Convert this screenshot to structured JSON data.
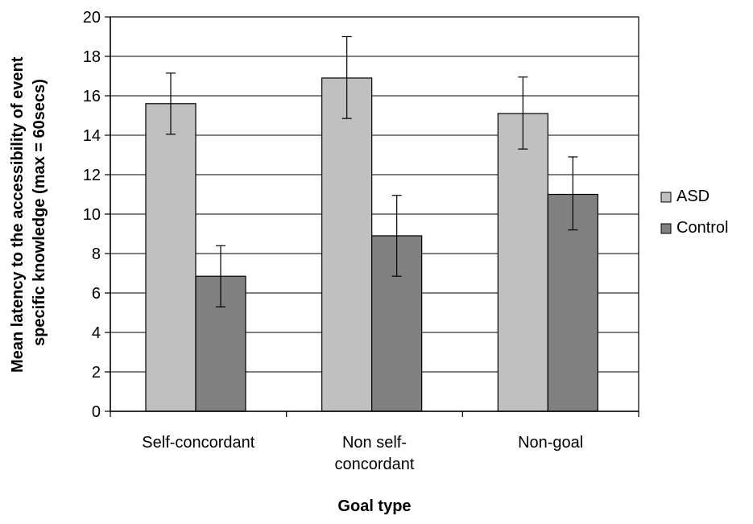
{
  "chart_data": {
    "type": "bar",
    "xlabel": "Goal type",
    "ylabel_lines": [
      "Mean latency to the accessibility of event",
      "specific knowledge (max = 60secs)"
    ],
    "categories": [
      [
        "Self-concordant"
      ],
      [
        "Non self-",
        "concordant"
      ],
      [
        "Non-goal"
      ]
    ],
    "series": [
      {
        "name": "ASD",
        "color": "#c0c0c0",
        "values": [
          15.6,
          16.9,
          15.1
        ],
        "error_low": [
          14.05,
          14.85,
          13.3
        ],
        "error_high": [
          17.15,
          19.0,
          16.95
        ]
      },
      {
        "name": "Control",
        "color": "#808080",
        "values": [
          6.85,
          8.9,
          11.0
        ],
        "error_low": [
          5.3,
          6.85,
          9.2
        ],
        "error_high": [
          8.4,
          10.95,
          12.9
        ]
      }
    ],
    "ylim": [
      0,
      20
    ],
    "yticks": [
      0,
      2,
      4,
      6,
      8,
      10,
      12,
      14,
      16,
      18,
      20
    ],
    "grid": "horizontal",
    "legend_position": "right"
  }
}
